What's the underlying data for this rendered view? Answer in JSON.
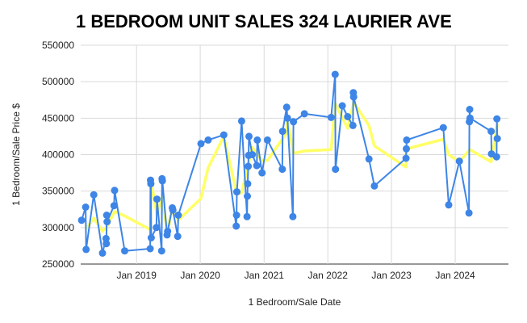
{
  "chart_data": {
    "type": "line",
    "title": "1 BEDROOM UNIT SALES 324 LAURIER AVE",
    "xlabel": "1 Bedroom/Sale Date",
    "ylabel": "1 Bedroom/Sale Price $",
    "ylim": [
      250000,
      550000
    ],
    "yticks": [
      250000,
      300000,
      350000,
      400000,
      450000,
      500000,
      550000
    ],
    "ytick_labels": [
      "250000",
      "300000",
      "350000",
      "400000",
      "450000",
      "500000",
      "550000"
    ],
    "xlim": [
      "2018-02-15",
      "2024-11-01"
    ],
    "xticks": [
      "2019-01-01",
      "2020-01-01",
      "2021-01-01",
      "2022-01-01",
      "2023-01-01",
      "2024-01-01"
    ],
    "xtick_labels": [
      "Jan 2019",
      "Jan 2020",
      "Jan 2021",
      "Jan 2022",
      "Jan 2023",
      "Jan 2024"
    ],
    "grid": true,
    "legend": "none",
    "series": [
      {
        "color": "#3d85e6",
        "markers": true,
        "points": [
          [
            "2018-02-20",
            310000
          ],
          [
            "2018-03-15",
            328000
          ],
          [
            "2018-03-18",
            270000
          ],
          [
            "2018-05-01",
            345000
          ],
          [
            "2018-06-20",
            265000
          ],
          [
            "2018-07-10",
            285000
          ],
          [
            "2018-07-12",
            278000
          ],
          [
            "2018-07-14",
            317000
          ],
          [
            "2018-07-16",
            308000
          ],
          [
            "2018-08-25",
            330000
          ],
          [
            "2018-08-28",
            351000
          ],
          [
            "2018-10-25",
            268000
          ],
          [
            "2019-03-20",
            271000
          ],
          [
            "2019-03-22",
            365000
          ],
          [
            "2019-03-24",
            360000
          ],
          [
            "2019-03-26",
            286000
          ],
          [
            "2019-04-25",
            300000
          ],
          [
            "2019-04-28",
            339000
          ],
          [
            "2019-05-25",
            268000
          ],
          [
            "2019-05-27",
            367000
          ],
          [
            "2019-05-29",
            364000
          ],
          [
            "2019-06-25",
            290000
          ],
          [
            "2019-06-28",
            295000
          ],
          [
            "2019-07-25",
            327000
          ],
          [
            "2019-07-28",
            324000
          ],
          [
            "2019-08-25",
            288000
          ],
          [
            "2019-08-28",
            317000
          ],
          [
            "2020-01-05",
            415000
          ],
          [
            "2020-02-15",
            420000
          ],
          [
            "2020-05-15",
            427000
          ],
          [
            "2020-07-25",
            302000
          ],
          [
            "2020-07-27",
            317000
          ],
          [
            "2020-07-29",
            349000
          ],
          [
            "2020-08-25",
            446000
          ],
          [
            "2020-09-25",
            315000
          ],
          [
            "2020-09-27",
            343000
          ],
          [
            "2020-09-29",
            360000
          ],
          [
            "2020-10-02",
            384000
          ],
          [
            "2020-10-04",
            399000
          ],
          [
            "2020-10-06",
            425000
          ],
          [
            "2020-10-25",
            400000
          ],
          [
            "2020-11-20",
            385000
          ],
          [
            "2020-11-23",
            420000
          ],
          [
            "2020-12-20",
            375000
          ],
          [
            "2021-01-20",
            420000
          ],
          [
            "2021-04-15",
            380000
          ],
          [
            "2021-04-17",
            432000
          ],
          [
            "2021-05-10",
            465000
          ],
          [
            "2021-05-15",
            450000
          ],
          [
            "2021-06-15",
            315000
          ],
          [
            "2021-06-18",
            445000
          ],
          [
            "2021-08-20",
            456000
          ],
          [
            "2022-01-20",
            451000
          ],
          [
            "2022-02-12",
            510000
          ],
          [
            "2022-02-14",
            380000
          ],
          [
            "2022-03-25",
            467000
          ],
          [
            "2022-04-25",
            452000
          ],
          [
            "2022-05-25",
            440000
          ],
          [
            "2022-05-27",
            485000
          ],
          [
            "2022-05-29",
            479000
          ],
          [
            "2022-08-25",
            394000
          ],
          [
            "2022-09-25",
            357000
          ],
          [
            "2023-03-25",
            395000
          ],
          [
            "2023-03-27",
            408000
          ],
          [
            "2023-03-29",
            420000
          ],
          [
            "2023-10-25",
            437000
          ],
          [
            "2023-11-25",
            331000
          ],
          [
            "2024-01-25",
            391000
          ],
          [
            "2024-03-20",
            320000
          ],
          [
            "2024-03-22",
            445000
          ],
          [
            "2024-03-24",
            462000
          ],
          [
            "2024-03-26",
            450000
          ],
          [
            "2024-07-25",
            432000
          ],
          [
            "2024-07-27",
            401000
          ],
          [
            "2024-08-25",
            397000
          ],
          [
            "2024-08-27",
            449000
          ],
          [
            "2024-08-29",
            422000
          ]
        ]
      },
      {
        "color": "#ffff66",
        "markers": false,
        "points": [
          [
            "2018-03-18",
            298000
          ],
          [
            "2018-05-01",
            313000
          ],
          [
            "2018-06-20",
            295000
          ],
          [
            "2018-07-16",
            302000
          ],
          [
            "2018-08-28",
            322000
          ],
          [
            "2018-10-25",
            316000
          ],
          [
            "2019-03-22",
            297000
          ],
          [
            "2019-03-24",
            365000
          ],
          [
            "2019-04-28",
            318000
          ],
          [
            "2019-05-27",
            342000
          ],
          [
            "2019-06-28",
            292000
          ],
          [
            "2019-07-25",
            330000
          ],
          [
            "2019-08-28",
            310000
          ],
          [
            "2020-01-05",
            340000
          ],
          [
            "2020-02-15",
            382000
          ],
          [
            "2020-05-15",
            425000
          ],
          [
            "2020-07-29",
            346000
          ],
          [
            "2020-08-25",
            348000
          ],
          [
            "2020-10-04",
            388000
          ],
          [
            "2020-10-25",
            410000
          ],
          [
            "2020-12-20",
            392000
          ],
          [
            "2021-01-20",
            392000
          ],
          [
            "2021-05-10",
            430000
          ],
          [
            "2021-05-15",
            448000
          ],
          [
            "2021-06-18",
            402000
          ],
          [
            "2021-08-20",
            405000
          ],
          [
            "2022-01-20",
            407000
          ],
          [
            "2022-02-12",
            470000
          ],
          [
            "2022-04-25",
            436000
          ],
          [
            "2022-05-29",
            472000
          ],
          [
            "2022-08-25",
            440000
          ],
          [
            "2022-09-25",
            412000
          ],
          [
            "2023-03-25",
            383000
          ],
          [
            "2023-03-27",
            408000
          ],
          [
            "2023-10-25",
            421000
          ],
          [
            "2023-11-25",
            400000
          ],
          [
            "2024-01-25",
            390000
          ],
          [
            "2024-03-24",
            407000
          ],
          [
            "2024-07-25",
            390000
          ],
          [
            "2024-08-29",
            442000
          ]
        ]
      }
    ]
  }
}
